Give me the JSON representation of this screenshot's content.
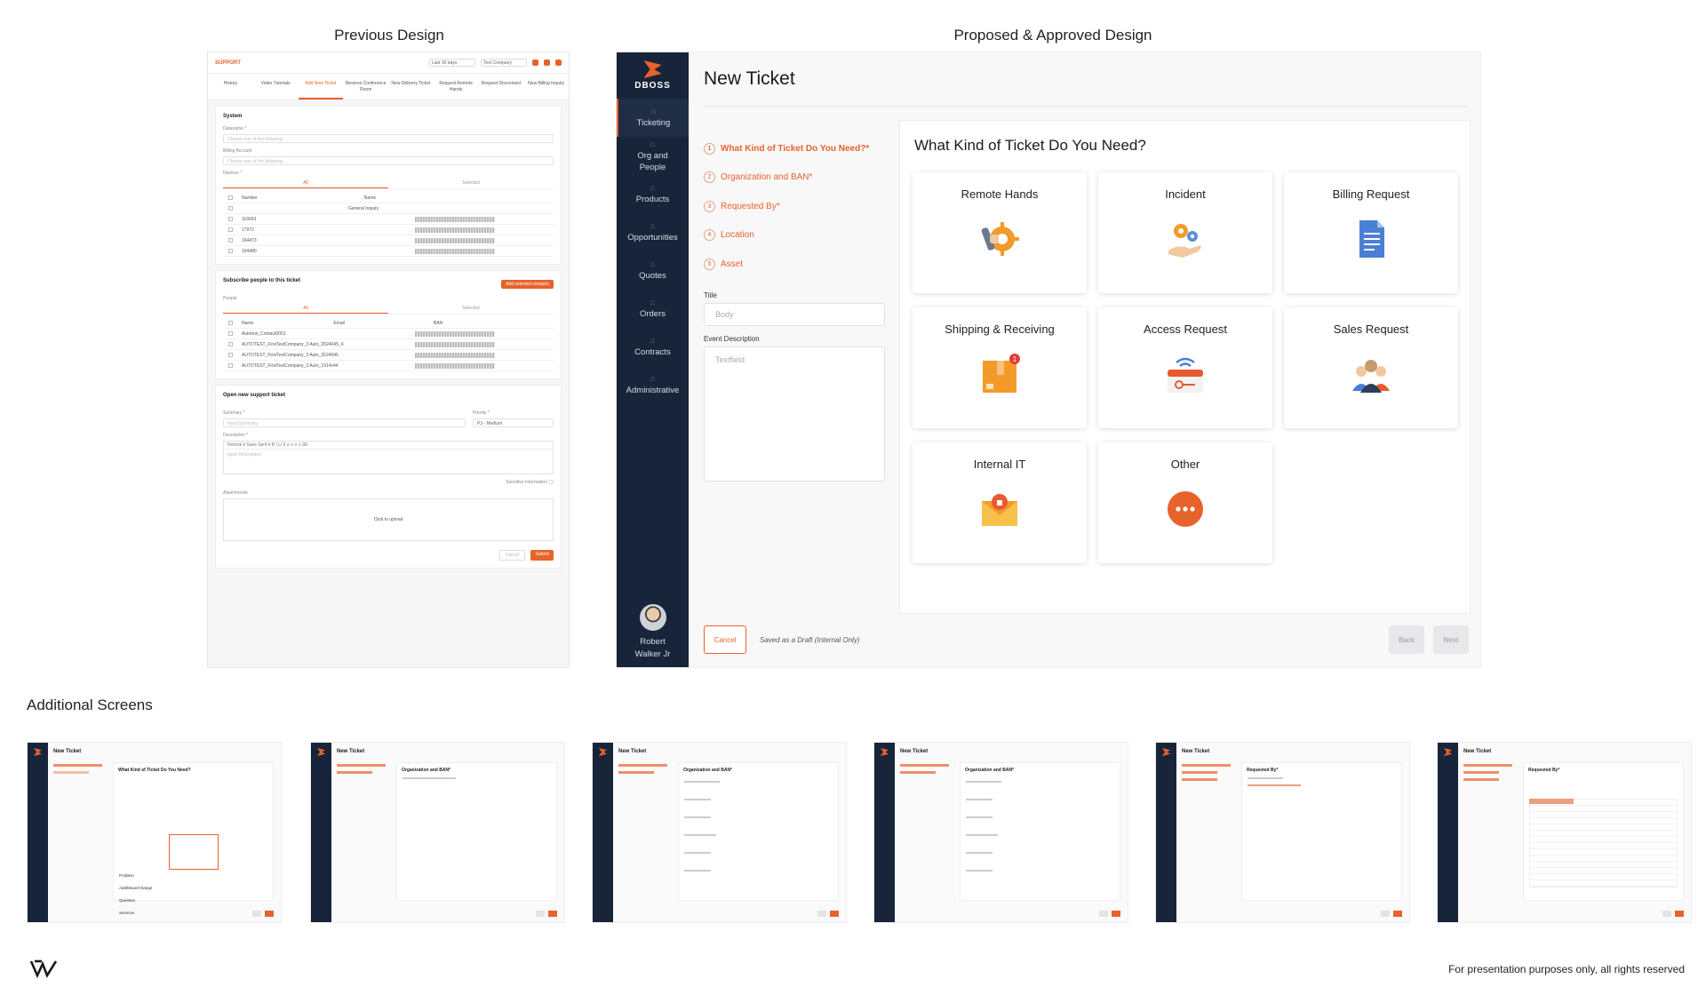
{
  "headings": {
    "previous": "Previous Design",
    "proposed": "Proposed & Approved Design",
    "additional": "Additional Screens"
  },
  "previous_mock": {
    "brand": "SUPPORT",
    "select_a": "Last 30 days",
    "select_b": "Test Company",
    "tabs": [
      "History",
      "Video Tutorials",
      "Add New Ticket",
      "Reserve Conference Room",
      "New Delivery Ticket",
      "Request Remote Hands",
      "Request Disconnect",
      "New Billing Inquiry"
    ],
    "system_title": "System",
    "dataname_label": "Dataname *",
    "dataname_placeholder": "Choose one of the following...",
    "billing_label": "Billing Account",
    "billing_placeholder": "Choose one of the following...",
    "devices_label": "Devices *",
    "seg_all": "All",
    "seg_selected": "Selected",
    "col_number": "Number",
    "col_name": "Name",
    "device_rows": [
      "",
      "116663",
      "17972",
      "164473",
      "164480"
    ],
    "device_first_name": "General Inquiry",
    "subscribe_title": "Subscribe people to this ticket",
    "subscribe_button": "Add selected contacts",
    "people_label": "People",
    "col_email": "Email",
    "col_ban": "BAN",
    "people_rows": [
      "Autotest_Contact0001",
      "AUTOTEST_FirstTestCompany_3 Auto_2024045_4",
      "AUTOTEST_FirstTestCompany_3 Auto_2024045",
      "AUTOTEST_FirstTestCompany_3 Auto_1914v44"
    ],
    "open_title": "Open new support ticket",
    "summary_label": "Summary *",
    "summary_placeholder": "Input Summary",
    "priority_label": "Priority *",
    "priority_value": "P3 - Medium",
    "description_label": "Description *",
    "editor_toolbar": "Normal ▾  Sans Serif ▾  B I U S  ≡ ≡ ≡ ≡  ⌧",
    "description_placeholder": "Input Description",
    "sensitive_label": "Sensitive Information",
    "attachments_label": "Attachments",
    "upload_label": "Click to upload",
    "cancel": "Cancel",
    "submit": "Submit"
  },
  "app": {
    "brand": "DBOSS",
    "nav": [
      "Ticketing",
      "Org and People",
      "Products",
      "Opportunities",
      "Quotes",
      "Orders",
      "Contracts",
      "Administrative"
    ],
    "user_name": "Robert Walker Jr",
    "page_title": "New Ticket",
    "steps": [
      {
        "num": "1",
        "label": "What Kind of Ticket Do You Need?*"
      },
      {
        "num": "2",
        "label": "Organization and BAN*"
      },
      {
        "num": "3",
        "label": "Requested By*"
      },
      {
        "num": "4",
        "label": "Location"
      },
      {
        "num": "5",
        "label": "Asset"
      }
    ],
    "title_label": "Title",
    "title_placeholder": "Body",
    "event_label": "Event Description",
    "event_placeholder": "Textfield",
    "panel_title": "What Kind of Ticket Do You Need?",
    "tiles": [
      "Remote Hands",
      "Incident",
      "Billing Request",
      "Shipping & Receiving",
      "Access Request",
      "Sales Request",
      "Internal IT",
      "Other"
    ],
    "notification_count": "1",
    "cancel": "Cancel",
    "draft_text": "Saved as a Draft (Internal Only)",
    "back": "Back",
    "next": "Next"
  },
  "thumbs": {
    "title": "New Ticket",
    "panels": [
      "What Kind of Ticket Do You Need?",
      "Organization and BAN*",
      "Organization and BAN*",
      "Organization and BAN*",
      "Requested By*",
      "Requested By*"
    ],
    "thumb1_list": [
      "Problem",
      "Add/Move/Change",
      "Question",
      "Services"
    ]
  },
  "footer": {
    "note": "For presentation purposes only, all rights reserved"
  },
  "colors": {
    "accent": "#e8622c",
    "sidebar": "#18243a"
  }
}
